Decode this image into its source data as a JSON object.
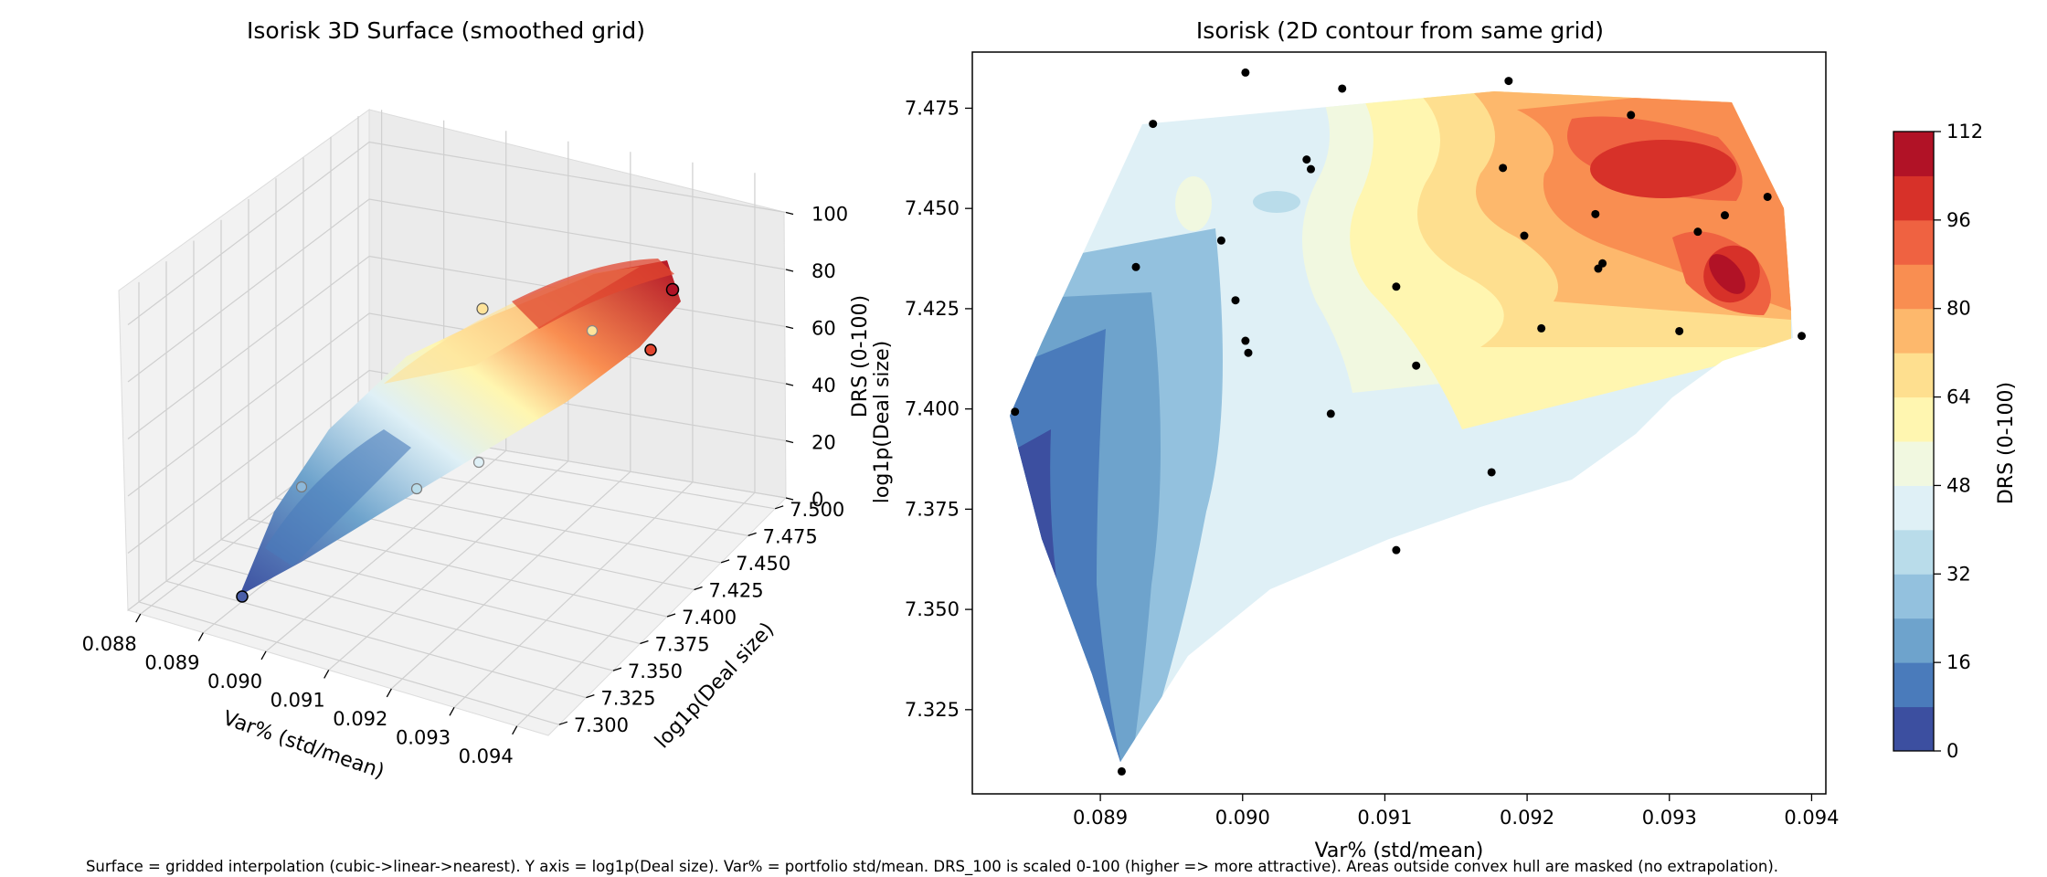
{
  "figure": {
    "caption": "Surface = gridded interpolation (cubic->linear->nearest). Y axis = log1p(Deal size). Var% = portfolio std/mean. DRS_100 is scaled 0-100 (higher => more attractive). Areas outside convex hull are masked (no extrapolation)."
  },
  "chart_data": [
    {
      "type": "surface3d",
      "title": "Isorisk 3D Surface (smoothed grid)",
      "xlabel": "Var% (std/mean)",
      "ylabel": "log1p(Deal size)",
      "zlabel": "DRS (0-100)",
      "xlim": [
        0.0878,
        0.0945
      ],
      "ylim": [
        7.29,
        7.51
      ],
      "zlim": [
        0,
        112
      ],
      "x_ticks": [
        "0.088",
        "0.089",
        "0.090",
        "0.091",
        "0.092",
        "0.093",
        "0.094"
      ],
      "y_ticks": [
        "7.300",
        "7.325",
        "7.350",
        "7.375",
        "7.400",
        "7.425",
        "7.450",
        "7.475",
        "7.500"
      ],
      "z_ticks": [
        "0",
        "20",
        "40",
        "60",
        "80",
        "100"
      ],
      "colormap": "RdYlBu_r",
      "grid": true
    },
    {
      "type": "contour",
      "title": "Isorisk (2D contour from same grid)",
      "xlabel": "Var% (std/mean)",
      "ylabel": "log1p(Deal size)",
      "xlim": [
        0.0881,
        0.0941
      ],
      "ylim": [
        7.304,
        7.489
      ],
      "x_ticks": [
        "0.089",
        "0.090",
        "0.091",
        "0.092",
        "0.093",
        "0.094"
      ],
      "y_ticks": [
        "7.325",
        "7.350",
        "7.375",
        "7.400",
        "7.425",
        "7.450",
        "7.475"
      ],
      "levels": [
        0,
        8,
        16,
        24,
        32,
        40,
        48,
        56,
        64,
        72,
        80,
        88,
        96,
        104,
        112
      ],
      "colors": [
        "#3c4fa0",
        "#4a7bbb",
        "#6ea3cc",
        "#93c1de",
        "#b9dcea",
        "#dff0f6",
        "#f1f8e0",
        "#fff6b0",
        "#fedf8f",
        "#fdb86c",
        "#f98e51",
        "#ef6241",
        "#d73129",
        "#b11226"
      ],
      "colorbar": {
        "label": "DRS (0-100)",
        "ticks": [
          "0",
          "16",
          "32",
          "48",
          "64",
          "80",
          "96",
          "112"
        ]
      },
      "points": [
        {
          "x": 0.0884,
          "y": 7.3993
        },
        {
          "x": 0.08915,
          "y": 7.3096
        },
        {
          "x": 0.08925,
          "y": 7.4354
        },
        {
          "x": 0.08937,
          "y": 7.4711
        },
        {
          "x": 0.08985,
          "y": 7.442
        },
        {
          "x": 0.08995,
          "y": 7.4271
        },
        {
          "x": 0.09002,
          "y": 7.4839
        },
        {
          "x": 0.09002,
          "y": 7.417
        },
        {
          "x": 0.09004,
          "y": 7.414
        },
        {
          "x": 0.09045,
          "y": 7.4622
        },
        {
          "x": 0.09048,
          "y": 7.4598
        },
        {
          "x": 0.09062,
          "y": 7.3988
        },
        {
          "x": 0.0907,
          "y": 7.4799
        },
        {
          "x": 0.09108,
          "y": 7.4305
        },
        {
          "x": 0.09108,
          "y": 7.3648
        },
        {
          "x": 0.09122,
          "y": 7.4108
        },
        {
          "x": 0.09175,
          "y": 7.3842
        },
        {
          "x": 0.09183,
          "y": 7.4601
        },
        {
          "x": 0.09187,
          "y": 7.4818
        },
        {
          "x": 0.09198,
          "y": 7.4432
        },
        {
          "x": 0.0921,
          "y": 7.4201
        },
        {
          "x": 0.09248,
          "y": 7.4486
        },
        {
          "x": 0.0925,
          "y": 7.435
        },
        {
          "x": 0.09253,
          "y": 7.4363
        },
        {
          "x": 0.09273,
          "y": 7.4733
        },
        {
          "x": 0.09307,
          "y": 7.4194
        },
        {
          "x": 0.0932,
          "y": 7.4442
        },
        {
          "x": 0.09339,
          "y": 7.4483
        },
        {
          "x": 0.09369,
          "y": 7.4529
        },
        {
          "x": 0.09393,
          "y": 7.4182
        }
      ]
    }
  ]
}
